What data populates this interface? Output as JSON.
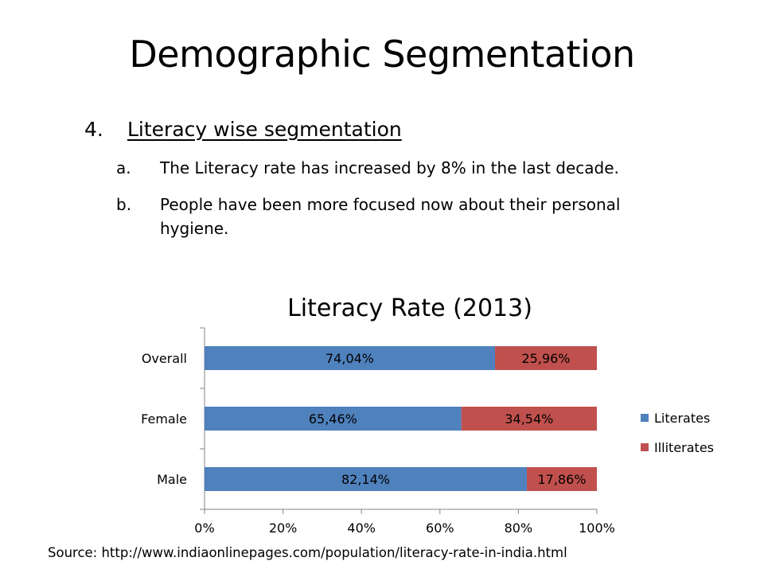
{
  "slide": {
    "title": "Demographic Segmentation",
    "bullet": {
      "number": "4.",
      "text": "Literacy wise segmentation"
    },
    "sub_bullets": [
      {
        "letter": "a.",
        "text": "The Literacy rate has increased by 8% in the last decade."
      },
      {
        "letter": "b.",
        "text": "People have been more focused now about their personal hygiene."
      }
    ],
    "source": "Source: http://www.indiaonlinepages.com/population/literacy-rate-in-india.html"
  },
  "chart_data": {
    "type": "bar",
    "orientation": "horizontal",
    "stacked": "percent",
    "title": "Literacy Rate (2013)",
    "categories": [
      "Overall",
      "Female",
      "Male"
    ],
    "series": [
      {
        "name": "Literates",
        "values": [
          74.04,
          65.46,
          82.14
        ],
        "labels": [
          "74,04%",
          "65,46%",
          "82,14%"
        ],
        "color": "#4f81bd"
      },
      {
        "name": "Illiterates",
        "values": [
          25.96,
          34.54,
          17.86
        ],
        "labels": [
          "25,96%",
          "34,54%",
          "17,86%"
        ],
        "color": "#c0504d"
      }
    ],
    "xlim": [
      0,
      100
    ],
    "x_ticks": [
      "0%",
      "20%",
      "40%",
      "60%",
      "80%",
      "100%"
    ],
    "grid": false,
    "legend": "right"
  }
}
